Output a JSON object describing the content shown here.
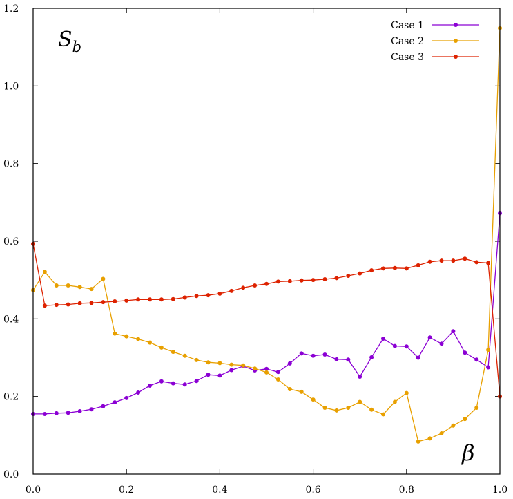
{
  "chart_data": {
    "type": "line",
    "title": "",
    "xlabel": "",
    "ylabel": "",
    "xlim": [
      0.0,
      1.0
    ],
    "ylim": [
      0.0,
      1.2
    ],
    "xticks": [
      "0.0",
      "0.2",
      "0.4",
      "0.6",
      "0.8",
      "1.0"
    ],
    "yticks": [
      "0.0",
      "0.2",
      "0.4",
      "0.6",
      "0.8",
      "1.0",
      "1.2"
    ],
    "grid": false,
    "legend_position": "top-right",
    "annotations": {
      "top_left": {
        "main": "S",
        "sub": "b"
      },
      "bottom_right": "β"
    },
    "series": [
      {
        "name": "Case 1",
        "color": "#8b00d4",
        "x": [
          0,
          0.025,
          0.05,
          0.075,
          0.1,
          0.125,
          0.15,
          0.175,
          0.2,
          0.225,
          0.25,
          0.275,
          0.3,
          0.325,
          0.35,
          0.375,
          0.4,
          0.425,
          0.45,
          0.475,
          0.5,
          0.525,
          0.55,
          0.575,
          0.6,
          0.625,
          0.65,
          0.675,
          0.7,
          0.725,
          0.75,
          0.775,
          0.8,
          0.825,
          0.85,
          0.875,
          0.9,
          0.925,
          0.95,
          0.975,
          1.0
        ],
        "y": [
          0.155,
          0.155,
          0.157,
          0.158,
          0.162,
          0.167,
          0.175,
          0.185,
          0.196,
          0.21,
          0.228,
          0.239,
          0.234,
          0.231,
          0.24,
          0.256,
          0.254,
          0.268,
          0.278,
          0.267,
          0.271,
          0.263,
          0.285,
          0.311,
          0.305,
          0.308,
          0.296,
          0.295,
          0.251,
          0.301,
          0.349,
          0.33,
          0.329,
          0.3,
          0.352,
          0.336,
          0.368,
          0.313,
          0.295,
          0.275,
          0.672
        ]
      },
      {
        "name": "Case 2",
        "color": "#e8a000",
        "x": [
          0,
          0.025,
          0.05,
          0.075,
          0.1,
          0.125,
          0.15,
          0.175,
          0.2,
          0.225,
          0.25,
          0.275,
          0.3,
          0.325,
          0.35,
          0.375,
          0.4,
          0.425,
          0.45,
          0.475,
          0.5,
          0.525,
          0.55,
          0.575,
          0.6,
          0.625,
          0.65,
          0.675,
          0.7,
          0.725,
          0.75,
          0.775,
          0.8,
          0.825,
          0.85,
          0.875,
          0.9,
          0.925,
          0.95,
          0.975,
          1.0
        ],
        "y": [
          0.474,
          0.521,
          0.486,
          0.486,
          0.482,
          0.477,
          0.503,
          0.362,
          0.355,
          0.348,
          0.339,
          0.326,
          0.315,
          0.305,
          0.294,
          0.288,
          0.286,
          0.282,
          0.28,
          0.272,
          0.262,
          0.244,
          0.219,
          0.212,
          0.192,
          0.171,
          0.164,
          0.171,
          0.186,
          0.166,
          0.154,
          0.186,
          0.209,
          0.084,
          0.092,
          0.105,
          0.125,
          0.142,
          0.171,
          0.32,
          1.149
        ]
      },
      {
        "name": "Case 3",
        "color": "#dd2200",
        "x": [
          0,
          0.025,
          0.05,
          0.075,
          0.1,
          0.125,
          0.15,
          0.175,
          0.2,
          0.225,
          0.25,
          0.275,
          0.3,
          0.325,
          0.35,
          0.375,
          0.4,
          0.425,
          0.45,
          0.475,
          0.5,
          0.525,
          0.55,
          0.575,
          0.6,
          0.625,
          0.65,
          0.675,
          0.7,
          0.725,
          0.75,
          0.775,
          0.8,
          0.825,
          0.85,
          0.875,
          0.9,
          0.925,
          0.95,
          0.975,
          1.0
        ],
        "y": [
          0.593,
          0.434,
          0.436,
          0.437,
          0.44,
          0.441,
          0.443,
          0.445,
          0.447,
          0.45,
          0.45,
          0.45,
          0.451,
          0.455,
          0.459,
          0.461,
          0.465,
          0.472,
          0.48,
          0.486,
          0.49,
          0.496,
          0.497,
          0.499,
          0.5,
          0.502,
          0.505,
          0.511,
          0.517,
          0.525,
          0.53,
          0.531,
          0.53,
          0.538,
          0.547,
          0.55,
          0.55,
          0.555,
          0.546,
          0.544,
          0.2
        ]
      }
    ]
  }
}
